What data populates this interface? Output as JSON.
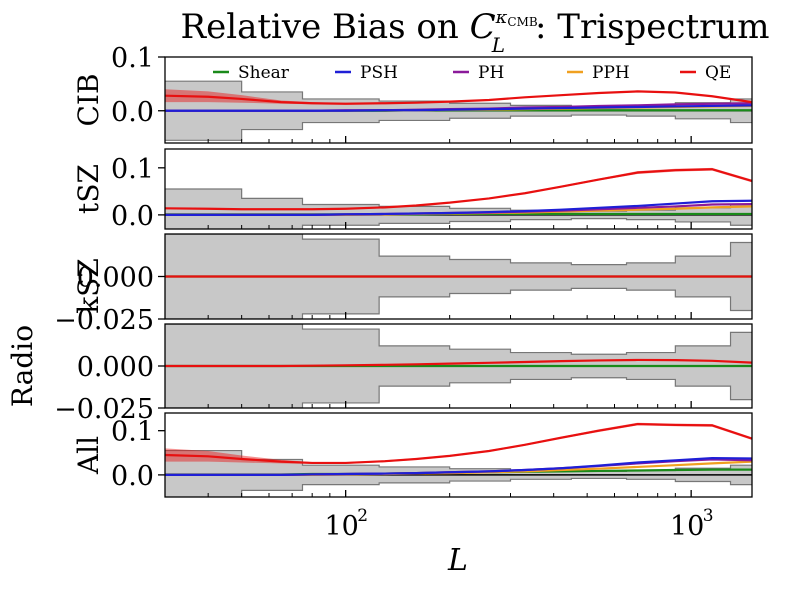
{
  "chart_data": {
    "type": "line",
    "title": "Relative Bias on C_L^{κ_CMB}: Trispectrum",
    "title_parts": {
      "main": "Relative Bias on ",
      "C": "C",
      "sub": "L",
      "sup_kappa": "κ",
      "sup_cmb": "CMB",
      "rest": ": Trispectrum"
    },
    "xlabel": "L",
    "xscale": "log",
    "xlim": [
      30,
      1500
    ],
    "xticks": [
      {
        "value": 100,
        "base": "10",
        "exp": "2"
      },
      {
        "value": 1000,
        "base": "10",
        "exp": "3"
      }
    ],
    "x": [
      30,
      40,
      50,
      65,
      80,
      100,
      130,
      160,
      200,
      260,
      330,
      420,
      540,
      700,
      900,
      1150,
      1500
    ],
    "legend": [
      "Shear",
      "PSH",
      "PH",
      "PPH",
      "QE"
    ],
    "colors": {
      "Shear": "#1a8a1a",
      "PSH": "#1f1fd6",
      "PH": "#8b1a9a",
      "PPH": "#f0a020",
      "QE": "#e81010",
      "band": "#c8c8c8",
      "band_edge": "#777777"
    },
    "panels": [
      {
        "ylabel": "CIB",
        "ylim": [
          -0.06,
          0.1
        ],
        "yticks": [
          {
            "value": 0.0,
            "label": "0.0"
          },
          {
            "value": 0.1,
            "label": "0.1"
          }
        ],
        "band_edges": [
          30,
          50,
          75,
          125,
          200,
          300,
          450,
          650,
          900,
          1300,
          1500
        ],
        "band_upper": [
          0.055,
          0.035,
          0.022,
          0.018,
          0.014,
          0.01,
          0.008,
          0.01,
          0.015,
          0.022
        ],
        "band_lower": [
          -0.055,
          -0.035,
          -0.022,
          -0.018,
          -0.014,
          -0.01,
          -0.008,
          -0.01,
          -0.015,
          -0.022
        ],
        "series": [
          {
            "name": "Shear",
            "values": [
              0,
              0,
              0,
              0,
              0,
              0,
              0,
              0.001,
              0.001,
              0.001,
              0.001,
              0.001,
              0.001,
              0.001,
              0.001,
              0.001,
              0.001
            ]
          },
          {
            "name": "PSH",
            "values": [
              0,
              0,
              0,
              0,
              0,
              0,
              0.001,
              0.001,
              0.002,
              0.003,
              0.004,
              0.005,
              0.006,
              0.007,
              0.008,
              0.009,
              0.01
            ]
          },
          {
            "name": "PH",
            "values": [
              0,
              0,
              0,
              0,
              0,
              0.001,
              0.001,
              0.002,
              0.003,
              0.004,
              0.006,
              0.007,
              0.009,
              0.01,
              0.012,
              0.013,
              0.014
            ]
          },
          {
            "name": "PPH",
            "values": [
              0,
              0,
              0,
              0,
              0,
              0,
              0.001,
              0.001,
              0.002,
              0.002,
              0.003,
              0.004,
              0.005,
              0.006,
              0.007,
              0.008,
              0.009
            ]
          },
          {
            "name": "QE",
            "values": [
              0.028,
              0.026,
              0.022,
              0.016,
              0.014,
              0.013,
              0.014,
              0.015,
              0.017,
              0.02,
              0.025,
              0.029,
              0.033,
              0.036,
              0.034,
              0.027,
              0.016
            ],
            "err": [
              0.012,
              0.01,
              0.007,
              0.003,
              0.002,
              0.001,
              0.001,
              0.001,
              0.001,
              0.001,
              0.001,
              0.001,
              0.001,
              0.001,
              0.001,
              0.001,
              0.002
            ]
          }
        ]
      },
      {
        "ylabel": "tSZ",
        "ylim": [
          -0.03,
          0.14
        ],
        "yticks": [
          {
            "value": 0.0,
            "label": "0.0"
          },
          {
            "value": 0.1,
            "label": "0.1"
          }
        ],
        "band_edges": [
          30,
          50,
          75,
          125,
          200,
          300,
          450,
          650,
          900,
          1300,
          1500
        ],
        "band_upper": [
          0.055,
          0.035,
          0.022,
          0.018,
          0.014,
          0.01,
          0.008,
          0.01,
          0.015,
          0.022
        ],
        "band_lower": [
          -0.055,
          -0.035,
          -0.022,
          -0.018,
          -0.014,
          -0.01,
          -0.008,
          -0.01,
          -0.015,
          -0.022
        ],
        "series": [
          {
            "name": "Shear",
            "values": [
              0.001,
              0.001,
              0.001,
              0.001,
              0.001,
              0.001,
              0.001,
              0.001,
              0.002,
              0.002,
              0.002,
              0.002,
              0.002,
              0.002,
              0.002,
              0.002,
              0.002
            ]
          },
          {
            "name": "PSH",
            "values": [
              0,
              0,
              0,
              0,
              0,
              0.001,
              0.002,
              0.003,
              0.004,
              0.006,
              0.008,
              0.011,
              0.015,
              0.019,
              0.024,
              0.029,
              0.03
            ]
          },
          {
            "name": "PH",
            "values": [
              0,
              0,
              0,
              0,
              0,
              0.001,
              0.002,
              0.003,
              0.004,
              0.005,
              0.007,
              0.009,
              0.012,
              0.015,
              0.018,
              0.022,
              0.023
            ]
          },
          {
            "name": "PPH",
            "values": [
              0,
              0,
              0,
              0,
              0,
              0,
              0.001,
              0.002,
              0.003,
              0.004,
              0.005,
              0.007,
              0.009,
              0.011,
              0.013,
              0.016,
              0.018
            ]
          },
          {
            "name": "QE",
            "values": [
              0.014,
              0.013,
              0.012,
              0.012,
              0.012,
              0.013,
              0.016,
              0.02,
              0.026,
              0.035,
              0.046,
              0.06,
              0.075,
              0.09,
              0.095,
              0.097,
              0.072
            ],
            "err": [
              0.001,
              0.001,
              0.001,
              0.001,
              0.001,
              0.001,
              0.001,
              0.001,
              0.001,
              0.001,
              0.001,
              0.002,
              0.002,
              0.003,
              0.003,
              0.003,
              0.003
            ]
          }
        ]
      },
      {
        "ylabel": "kSZ",
        "ylim": [
          -0.025,
          0.025
        ],
        "yticks": [
          {
            "value": 0.0,
            "label": "0.000"
          },
          {
            "value": -0.025,
            "label": "−0.025"
          }
        ],
        "band_edges": [
          30,
          50,
          75,
          125,
          200,
          300,
          450,
          650,
          900,
          1300,
          1500
        ],
        "band_upper": [
          0.025,
          0.025,
          0.022,
          0.012,
          0.01,
          0.008,
          0.007,
          0.008,
          0.012,
          0.02
        ],
        "band_lower": [
          -0.025,
          -0.025,
          -0.022,
          -0.012,
          -0.01,
          -0.008,
          -0.007,
          -0.008,
          -0.012,
          -0.02
        ],
        "series": [
          {
            "name": "QE",
            "values": [
              0,
              0,
              0,
              0,
              0,
              0,
              0,
              0,
              0,
              0,
              0,
              0,
              0,
              0,
              0,
              0,
              0
            ]
          },
          {
            "name": "Shear",
            "values": [
              0,
              0,
              0,
              0,
              0,
              0,
              0,
              0,
              0,
              0,
              0,
              0,
              0,
              0,
              0,
              0,
              0
            ]
          }
        ]
      },
      {
        "ylabel": "Radio",
        "ylim": [
          -0.025,
          0.025
        ],
        "yticks": [
          {
            "value": 0.0,
            "label": "0.000"
          },
          {
            "value": -0.025,
            "label": "−0.025"
          }
        ],
        "band_edges": [
          30,
          50,
          75,
          125,
          200,
          300,
          450,
          650,
          900,
          1300,
          1500
        ],
        "band_upper": [
          0.025,
          0.025,
          0.022,
          0.012,
          0.01,
          0.008,
          0.007,
          0.008,
          0.012,
          0.02
        ],
        "band_lower": [
          -0.025,
          -0.025,
          -0.022,
          -0.012,
          -0.01,
          -0.008,
          -0.007,
          -0.008,
          -0.012,
          -0.02
        ],
        "series": [
          {
            "name": "Shear",
            "values": [
              0,
              0,
              0,
              0,
              0,
              0,
              0,
              0,
              0,
              0,
              0,
              0,
              0,
              0,
              0,
              0,
              0
            ]
          },
          {
            "name": "QE",
            "values": [
              0,
              0,
              0,
              0,
              0.0002,
              0.0004,
              0.0007,
              0.001,
              0.0014,
              0.0019,
              0.0024,
              0.0029,
              0.0033,
              0.0036,
              0.0035,
              0.0031,
              0.002
            ]
          }
        ]
      },
      {
        "ylabel": "All",
        "ylim": [
          -0.05,
          0.14
        ],
        "yticks": [
          {
            "value": 0.0,
            "label": "0.0"
          },
          {
            "value": 0.1,
            "label": "0.1"
          }
        ],
        "band_edges": [
          30,
          50,
          75,
          125,
          200,
          300,
          450,
          650,
          900,
          1300,
          1500
        ],
        "band_upper": [
          0.055,
          0.035,
          0.022,
          0.018,
          0.014,
          0.01,
          0.008,
          0.01,
          0.015,
          0.022
        ],
        "band_lower": [
          -0.055,
          -0.035,
          -0.022,
          -0.018,
          -0.014,
          -0.01,
          -0.008,
          -0.01,
          -0.015,
          -0.022
        ],
        "series": [
          {
            "name": "Shear",
            "values": [
              0.001,
              0.001,
              0.001,
              0.001,
              0.002,
              0.002,
              0.003,
              0.004,
              0.005,
              0.006,
              0.007,
              0.008,
              0.009,
              0.01,
              0.011,
              0.012,
              0.012
            ]
          },
          {
            "name": "PH",
            "values": [
              0,
              0,
              0,
              0,
              0.001,
              0.002,
              0.003,
              0.004,
              0.006,
              0.008,
              0.011,
              0.015,
              0.02,
              0.026,
              0.031,
              0.035,
              0.033
            ]
          },
          {
            "name": "PSH",
            "values": [
              0,
              0,
              0,
              0,
              0.001,
              0.002,
              0.003,
              0.004,
              0.006,
              0.008,
              0.011,
              0.015,
              0.021,
              0.028,
              0.033,
              0.038,
              0.037
            ]
          },
          {
            "name": "PPH",
            "values": [
              0,
              0,
              0,
              0,
              0,
              0.001,
              0.002,
              0.003,
              0.004,
              0.006,
              0.008,
              0.011,
              0.014,
              0.018,
              0.022,
              0.026,
              0.03
            ]
          },
          {
            "name": "QE",
            "values": [
              0.045,
              0.042,
              0.036,
              0.03,
              0.027,
              0.027,
              0.031,
              0.036,
              0.043,
              0.054,
              0.068,
              0.084,
              0.1,
              0.115,
              0.113,
              0.112,
              0.082
            ],
            "err": [
              0.015,
              0.012,
              0.008,
              0.004,
              0.002,
              0.002,
              0.002,
              0.002,
              0.002,
              0.002,
              0.002,
              0.002,
              0.003,
              0.003,
              0.003,
              0.003,
              0.003
            ]
          }
        ]
      }
    ]
  }
}
